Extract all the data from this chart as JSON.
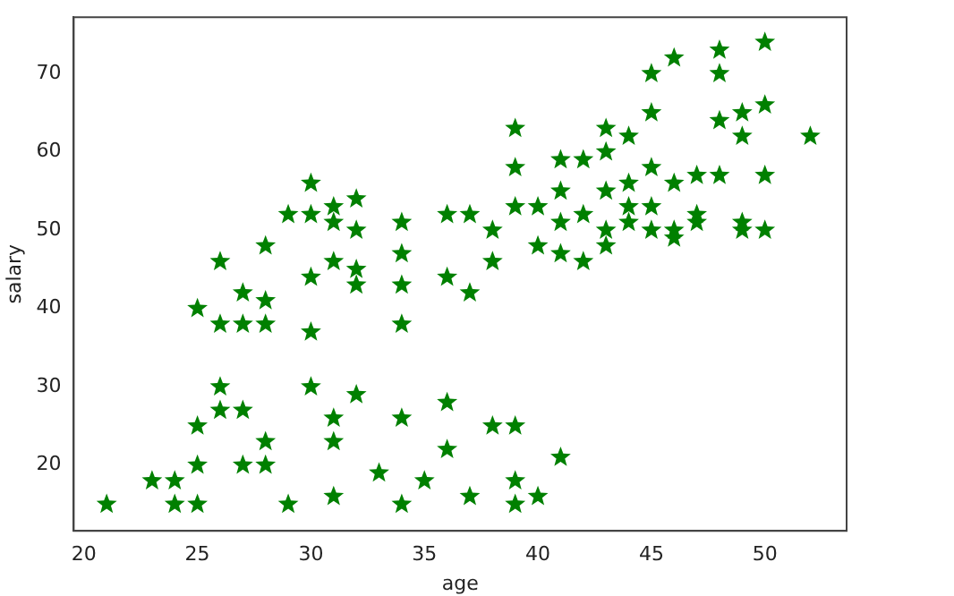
{
  "chart_data": {
    "type": "scatter",
    "xlabel": "age",
    "ylabel": "salary",
    "marker": "star",
    "grid": false,
    "xlim": [
      19.55,
      53.6
    ],
    "ylim": [
      11.6,
      77.2
    ],
    "xticks": [
      20,
      25,
      30,
      35,
      40,
      45,
      50
    ],
    "yticks": [
      20,
      30,
      40,
      50,
      60,
      70
    ],
    "series": [
      {
        "color": "#008000",
        "x": [
          21,
          23,
          24,
          24,
          25,
          25,
          25,
          25,
          26,
          26,
          26,
          26,
          27,
          27,
          27,
          27,
          28,
          28,
          28,
          28,
          28,
          29,
          29,
          30,
          30,
          30,
          30,
          30,
          31,
          31,
          31,
          31,
          31,
          31,
          32,
          32,
          32,
          32,
          32,
          33,
          34,
          34,
          34,
          34,
          34,
          34,
          35,
          36,
          36,
          36,
          36,
          37,
          37,
          37,
          38,
          38,
          38,
          39,
          39,
          39,
          39,
          39,
          39,
          40,
          40,
          40,
          41,
          41,
          41,
          41,
          41,
          42,
          42,
          42,
          43,
          43,
          43,
          43,
          43,
          44,
          44,
          44,
          44,
          45,
          45,
          45,
          45,
          45,
          46,
          46,
          46,
          46,
          47,
          47,
          47,
          48,
          48,
          48,
          48,
          49,
          49,
          49,
          49,
          50,
          50,
          50,
          50,
          52
        ],
        "values": [
          15,
          18,
          18,
          15,
          15,
          20,
          25,
          40,
          46,
          38,
          30,
          27,
          42,
          38,
          27,
          20,
          48,
          41,
          38,
          23,
          20,
          52,
          15,
          56,
          52,
          44,
          37,
          30,
          53,
          51,
          46,
          26,
          23,
          16,
          54,
          50,
          45,
          43,
          29,
          19,
          51,
          47,
          43,
          38,
          26,
          15,
          18,
          52,
          44,
          28,
          22,
          52,
          42,
          16,
          50,
          46,
          25,
          63,
          58,
          53,
          25,
          18,
          15,
          53,
          48,
          16,
          59,
          55,
          51,
          47,
          21,
          59,
          52,
          46,
          63,
          60,
          55,
          50,
          48,
          62,
          56,
          53,
          51,
          70,
          65,
          58,
          53,
          50,
          72,
          56,
          50,
          49,
          57,
          52,
          51,
          73,
          70,
          64,
          57,
          65,
          62,
          51,
          50,
          74,
          66,
          57,
          50,
          62
        ]
      }
    ]
  }
}
